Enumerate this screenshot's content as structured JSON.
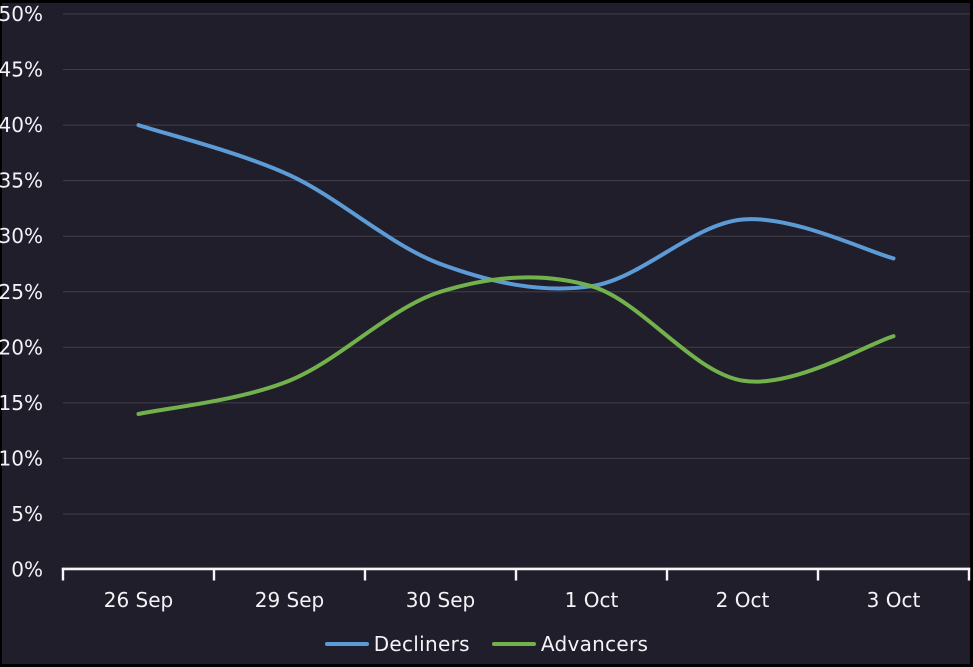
{
  "colors": {
    "page_border": "#000000",
    "panel": "#201e2b",
    "gridline": "#413e4a",
    "axis": "#f6f5f8",
    "text": "#f4f3f7",
    "decliners": "#5d9bd6",
    "advancers": "#72b14c"
  },
  "chart_data": {
    "type": "line",
    "categories": [
      "26 Sep",
      "29 Sep",
      "30 Sep",
      "1 Oct",
      "2 Oct",
      "3 Oct"
    ],
    "series": [
      {
        "name": "Decliners",
        "color_key": "decliners",
        "values": [
          40,
          35.5,
          27.5,
          25.5,
          31.5,
          28
        ]
      },
      {
        "name": "Advancers",
        "color_key": "advancers",
        "values": [
          14,
          17,
          25,
          25.5,
          17,
          21
        ]
      }
    ],
    "y_ticks": [
      "0%",
      "5%",
      "10%",
      "15%",
      "20%",
      "25%",
      "30%",
      "35%",
      "40%",
      "45%",
      "50%"
    ],
    "ylim": [
      0,
      50
    ],
    "y_tick_step": 5,
    "unit": "%",
    "grid": true,
    "line_style": "smooth",
    "legend_position": "bottom-center",
    "title": "",
    "xlabel": "",
    "ylabel": ""
  }
}
